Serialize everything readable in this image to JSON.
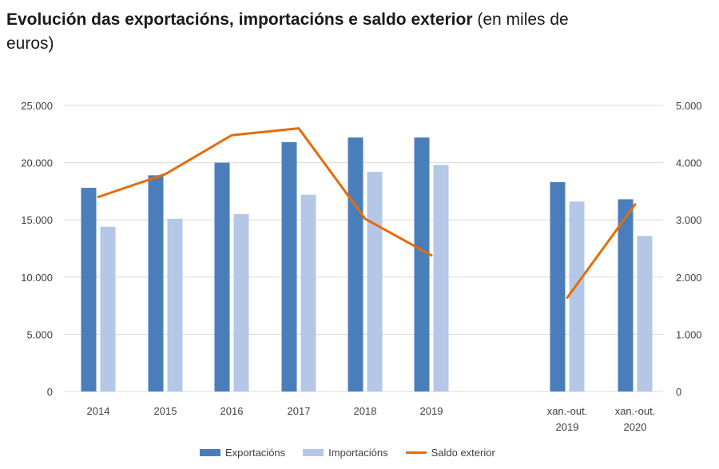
{
  "title": {
    "bold": "Evolución das exportacións, importacións e saldo exterior",
    "normal": "(en miles de euros)"
  },
  "colors": {
    "exportacions": "#4a7ebb",
    "importacions": "#b4c7e7",
    "saldo": "#e46c0a",
    "grid": "#d9d9d9"
  },
  "chart_data": {
    "type": "bar",
    "categories": [
      [
        "2014"
      ],
      [
        "2015"
      ],
      [
        "2016"
      ],
      [
        "2017"
      ],
      [
        "2018"
      ],
      [
        "2019"
      ],
      [
        "xan.-out.",
        "2019"
      ],
      [
        "xan.-out.",
        "2020"
      ]
    ],
    "y_left": {
      "min": 0,
      "max": 25000,
      "ticks": [
        "0",
        "5.000",
        "10.000",
        "15.000",
        "20.000",
        "25.000"
      ]
    },
    "y_right": {
      "min": 0,
      "max": 5000,
      "ticks": [
        "0",
        "1.000",
        "2.000",
        "3.000",
        "4.000",
        "5.000"
      ]
    },
    "series": [
      {
        "name": "Exportacións",
        "kind": "bar",
        "axis": "left",
        "values": [
          17800,
          18900,
          20000,
          21800,
          22200,
          22200,
          18300,
          16800
        ]
      },
      {
        "name": "Importacións",
        "kind": "bar",
        "axis": "left",
        "values": [
          14400,
          15100,
          15500,
          17200,
          19200,
          19800,
          16600,
          13600
        ]
      },
      {
        "name": "Saldo exterior",
        "kind": "line",
        "axis": "right",
        "segments": [
          {
            "indices": [
              0,
              1,
              2,
              3,
              4,
              5
            ],
            "values": [
              3400,
              3800,
              4480,
              4600,
              3020,
              2380
            ]
          },
          {
            "indices": [
              6,
              7
            ],
            "values": [
              1640,
              3270
            ]
          }
        ]
      }
    ],
    "grid": true,
    "legend_position": "bottom"
  }
}
